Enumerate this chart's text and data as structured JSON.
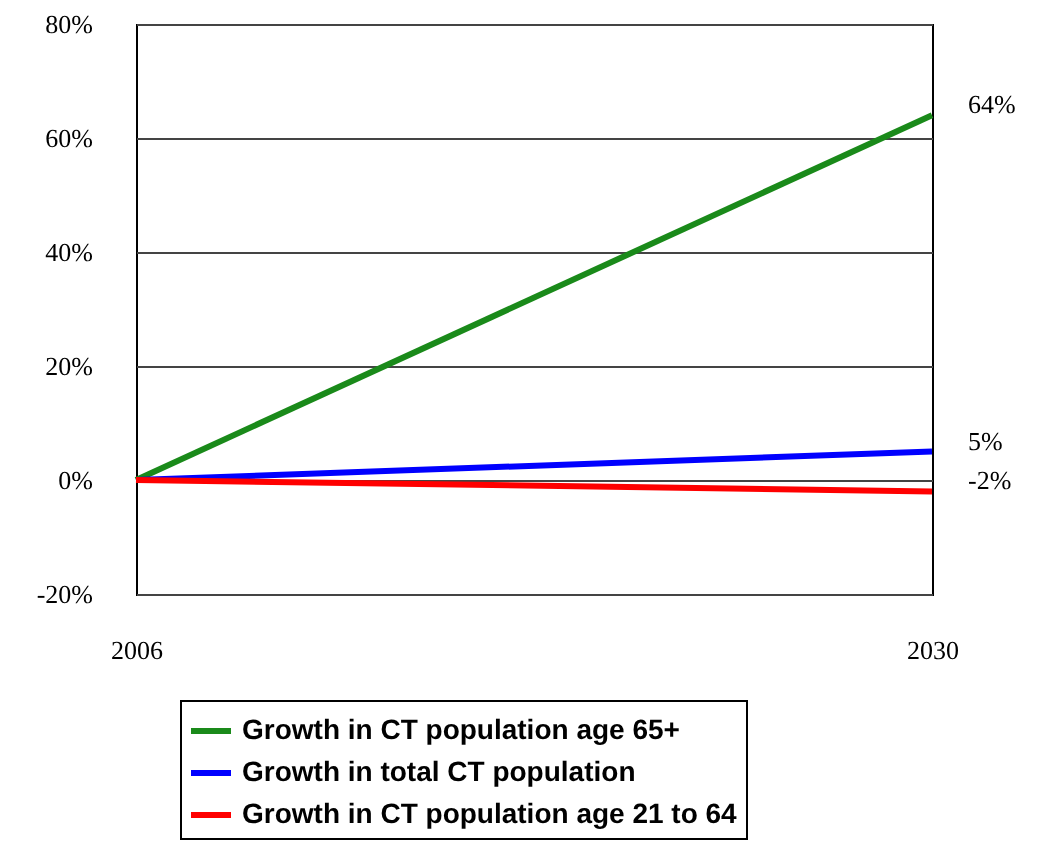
{
  "chart_data": {
    "type": "line",
    "x": [
      2006,
      2030
    ],
    "xlim": [
      2006,
      2030
    ],
    "xticks": [
      2006,
      2030
    ],
    "ylim": [
      -20,
      80
    ],
    "yticks": [
      {
        "value": -20,
        "label": "-20%"
      },
      {
        "value": 0,
        "label": "0%"
      },
      {
        "value": 20,
        "label": "20%"
      },
      {
        "value": 40,
        "label": "40%"
      },
      {
        "value": 60,
        "label": "60%"
      },
      {
        "value": 80,
        "label": "80%"
      }
    ],
    "grid": "y",
    "legend": "bottom",
    "series": [
      {
        "name": "Growth in CT population age 65+",
        "color": "#1a8a1a",
        "values": [
          0,
          64
        ],
        "value_labels": [
          null,
          "64%"
        ]
      },
      {
        "name": "Growth in total CT population",
        "color": "#0000ff",
        "values": [
          0,
          5
        ],
        "value_labels": [
          null,
          "5%"
        ]
      },
      {
        "name": "Growth in CT population age 21 to 64",
        "color": "#ff0000",
        "values": [
          0,
          -2
        ],
        "value_labels": [
          null,
          "-2%"
        ]
      }
    ]
  }
}
